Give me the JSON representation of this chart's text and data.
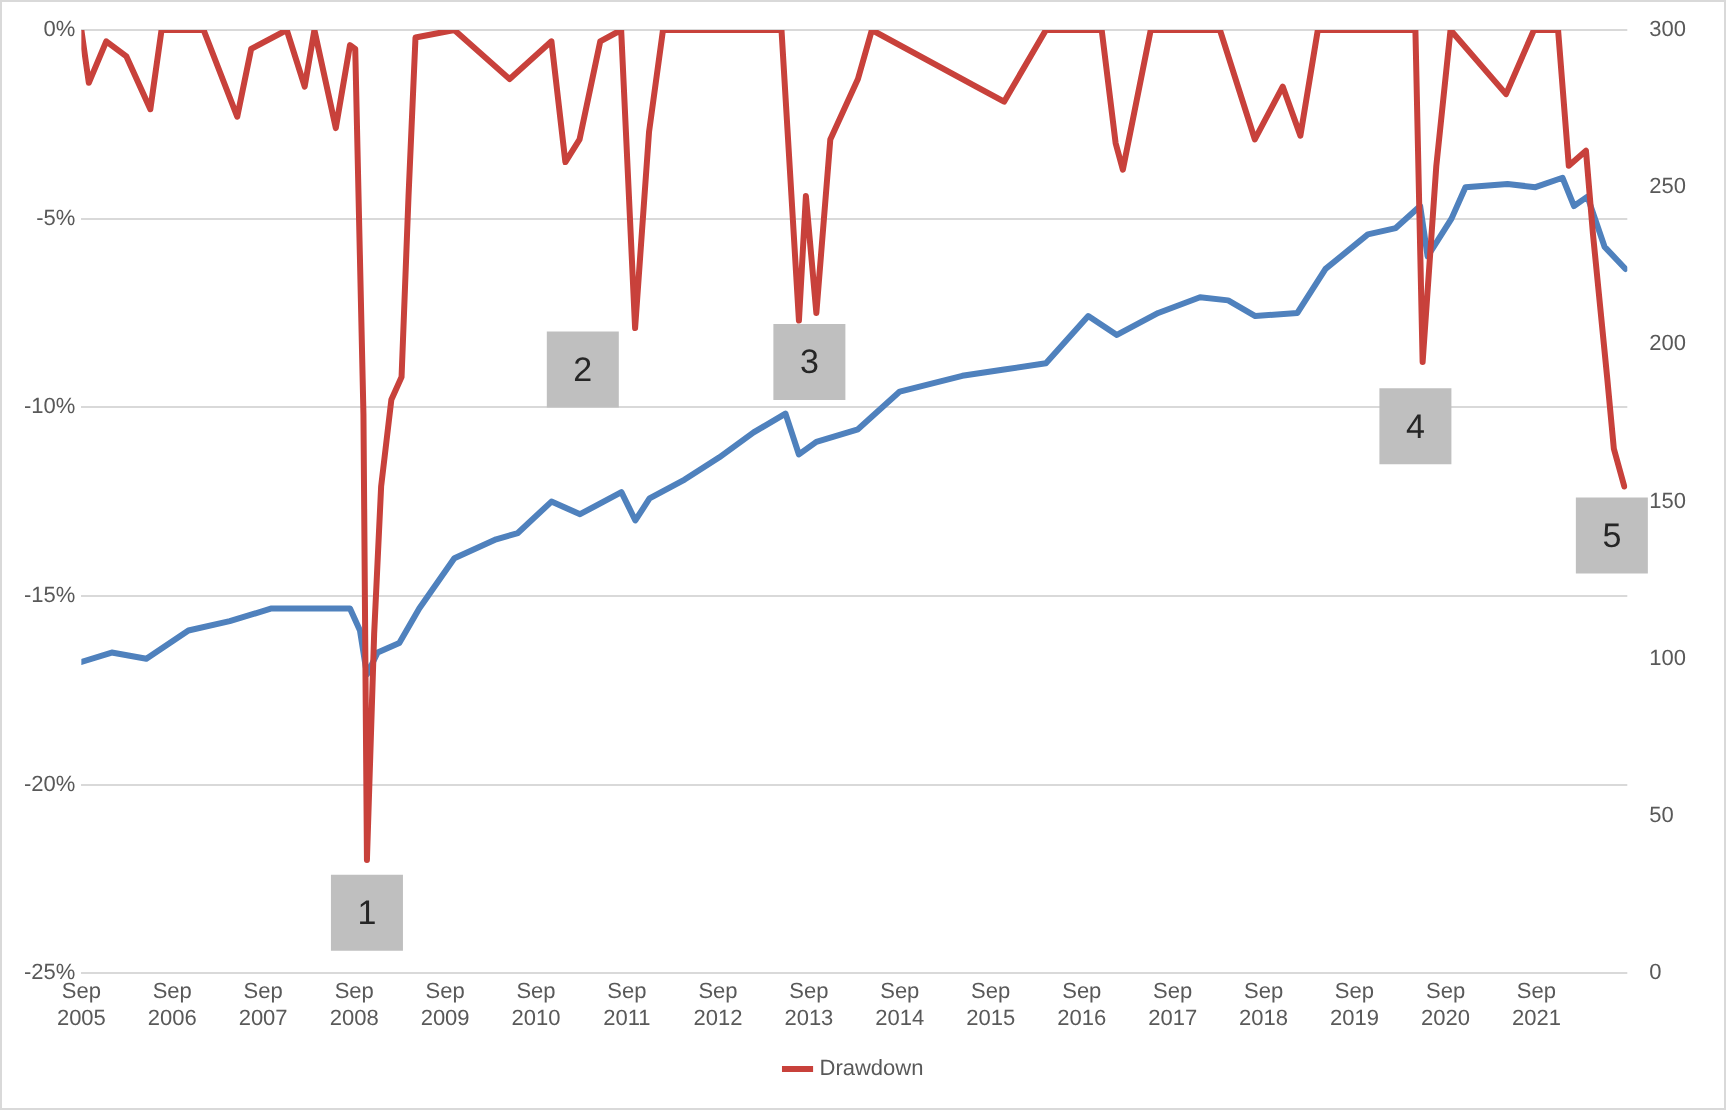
{
  "chart_data": {
    "type": "line",
    "series": [
      {
        "name": "Drawdown",
        "color": "#c8413b",
        "axis": "y",
        "x": [
          "2005-09-01",
          "2005-10-01",
          "2005-12-10",
          "2006-03-01",
          "2006-06-05",
          "2006-07-20",
          "2007-01-05",
          "2007-05-20",
          "2007-07-15",
          "2007-12-05",
          "2008-02-15",
          "2008-03-25",
          "2008-06-19",
          "2008-08-15",
          "2008-09-05",
          "2008-10-08",
          "2008-10-22",
          "2008-11-20",
          "2008-12-18",
          "2009-01-28",
          "2009-03-10",
          "2009-04-07",
          "2009-05-05",
          "2009-10-08",
          "2010-05-18",
          "2010-11-02",
          "2010-12-28",
          "2011-02-23",
          "2011-05-17",
          "2011-08-09",
          "2011-10-04",
          "2011-11-29",
          "2012-01-24",
          "2012-09-05",
          "2013-05-14",
          "2013-07-23",
          "2013-08-20",
          "2013-10-01",
          "2013-11-26",
          "2014-03-17",
          "2014-05-12",
          "2015-07-05",
          "2015-10-25",
          "2016-04-10",
          "2016-11-20",
          "2017-01-15",
          "2017-02-13",
          "2017-06-05",
          "2018-03-10",
          "2018-07-28",
          "2018-11-17",
          "2019-01-27",
          "2019-04-07",
          "2020-05-03",
          "2020-06-01",
          "2020-07-26",
          "2020-09-21",
          "2021-05-02",
          "2021-08-22",
          "2021-11-27",
          "2022-01-09",
          "2022-03-19",
          "2022-04-16",
          "2022-06-12",
          "2022-07-09",
          "2022-08-20"
        ],
        "values": [
          0,
          -1.4,
          -0.3,
          -0.7,
          -2.1,
          0,
          0,
          -2.3,
          -0.5,
          0,
          -1.5,
          0,
          -2.6,
          -0.4,
          -0.5,
          -10.2,
          -22.0,
          -16.0,
          -12.1,
          -9.8,
          -9.2,
          -4.4,
          -0.2,
          0,
          -1.3,
          -0.3,
          -3.5,
          -2.9,
          -0.3,
          0,
          -7.9,
          -2.7,
          0,
          0,
          0,
          -7.7,
          -4.4,
          -7.5,
          -2.9,
          -1.3,
          0,
          -1.5,
          -1.9,
          0,
          0,
          -3.0,
          -3.7,
          0,
          0,
          -2.9,
          -1.5,
          -2.8,
          0,
          0,
          -8.8,
          -3.6,
          0,
          -1.7,
          0,
          0,
          -3.6,
          -3.2,
          -5.4,
          -9.2,
          -11.1,
          -12.1
        ]
      },
      {
        "color": "#4f81bd",
        "axis": "y2",
        "x": [
          "2005-09-01",
          "2006-01-01",
          "2006-05-20",
          "2006-11-05",
          "2007-04-20",
          "2007-10-05",
          "2008-03-25",
          "2008-08-15",
          "2008-09-24",
          "2008-10-22",
          "2008-12-04",
          "2009-03-01",
          "2009-05-20",
          "2009-10-08",
          "2010-03-25",
          "2010-06-20",
          "2010-11-02",
          "2011-02-25",
          "2011-08-10",
          "2011-10-05",
          "2011-12-01",
          "2012-04-20",
          "2012-09-05",
          "2013-01-22",
          "2013-05-30",
          "2013-07-23",
          "2013-10-01",
          "2014-03-17",
          "2014-09-01",
          "2015-05-10",
          "2015-10-25",
          "2016-04-10",
          "2016-09-27",
          "2017-01-20",
          "2017-07-05",
          "2017-12-20",
          "2018-04-12",
          "2018-07-30",
          "2019-01-15",
          "2019-05-08",
          "2019-10-25",
          "2020-02-14",
          "2020-05-22",
          "2020-06-21",
          "2020-09-25",
          "2020-11-20",
          "2021-05-08",
          "2021-08-28",
          "2021-12-15",
          "2022-01-30",
          "2022-03-25",
          "2022-06-02",
          "2022-08-25"
        ],
        "values": [
          99,
          102,
          100,
          109,
          112,
          116,
          116,
          116,
          109,
          95,
          102,
          105,
          116,
          132,
          138,
          140,
          150,
          146,
          153,
          144,
          151,
          157,
          164,
          172,
          178,
          165,
          169,
          173,
          185,
          190,
          192,
          194,
          209,
          203,
          210,
          215,
          214,
          209,
          210,
          224,
          235,
          237,
          244,
          228,
          240,
          250,
          251,
          250,
          253,
          244,
          247,
          231,
          224
        ]
      }
    ],
    "xlim": [
      "2005-09-01",
      "2022-09-01"
    ],
    "xticks": [
      {
        "value": "2005-09-01",
        "label": "Sep 2005"
      },
      {
        "value": "2006-09-01",
        "label": "Sep 2006"
      },
      {
        "value": "2007-09-01",
        "label": "Sep 2007"
      },
      {
        "value": "2008-09-01",
        "label": "Sep 2008"
      },
      {
        "value": "2009-09-01",
        "label": "Sep 2009"
      },
      {
        "value": "2010-09-01",
        "label": "Sep 2010"
      },
      {
        "value": "2011-09-01",
        "label": "Sep 2011"
      },
      {
        "value": "2012-09-01",
        "label": "Sep 2012"
      },
      {
        "value": "2013-09-01",
        "label": "Sep 2013"
      },
      {
        "value": "2014-09-01",
        "label": "Sep 2014"
      },
      {
        "value": "2015-09-01",
        "label": "Sep 2015"
      },
      {
        "value": "2016-09-01",
        "label": "Sep 2016"
      },
      {
        "value": "2017-09-01",
        "label": "Sep 2017"
      },
      {
        "value": "2018-09-01",
        "label": "Sep 2018"
      },
      {
        "value": "2019-09-01",
        "label": "Sep 2019"
      },
      {
        "value": "2020-09-01",
        "label": "Sep 2020"
      },
      {
        "value": "2021-09-01",
        "label": "Sep 2021"
      }
    ],
    "ylim": [
      -25,
      0
    ],
    "yticks": [
      {
        "value": 0,
        "label": "0%"
      },
      {
        "value": -5,
        "label": "-5%"
      },
      {
        "value": -10,
        "label": "-10%"
      },
      {
        "value": -15,
        "label": "-15%"
      },
      {
        "value": -20,
        "label": "-20%"
      },
      {
        "value": -25,
        "label": "-25%"
      }
    ],
    "y2lim": [
      0,
      300
    ],
    "y2ticks": [
      0,
      50,
      100,
      150,
      200,
      250,
      300
    ],
    "annotations": [
      {
        "text": "1",
        "x": "2008-10-22",
        "y": -23.4
      },
      {
        "text": "2",
        "x": "2011-03-08",
        "y": -9.0
      },
      {
        "text": "3",
        "x": "2013-09-03",
        "y": -8.8
      },
      {
        "text": "4",
        "x": "2020-05-03",
        "y": -10.5
      },
      {
        "text": "5",
        "x": "2022-07-01",
        "y": -13.4
      }
    ],
    "grid": "y",
    "legend": "bottom",
    "marker": "none",
    "line_style": "solid"
  }
}
